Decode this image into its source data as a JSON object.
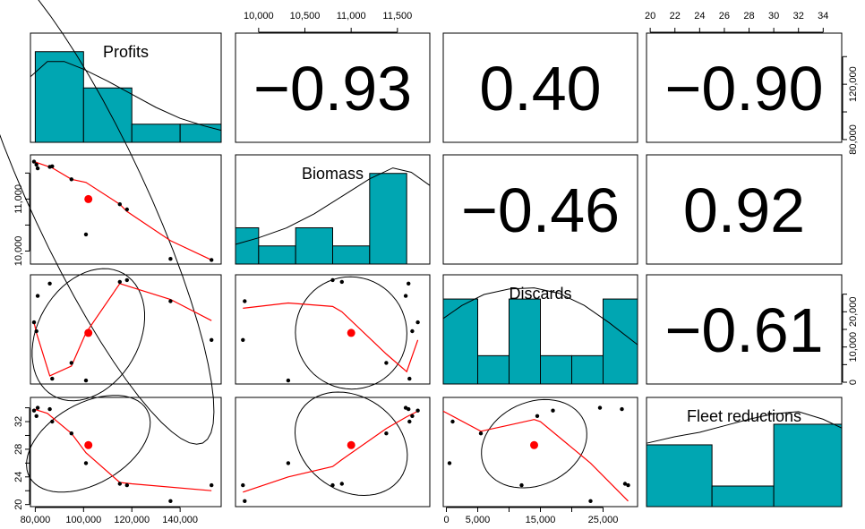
{
  "chart_data": {
    "type": "scatter-matrix",
    "variables": [
      "Profits",
      "Biomass",
      "Discards",
      "Fleet reductions"
    ],
    "correlations": [
      {
        "row": 0,
        "col": 1,
        "label": "−0.93"
      },
      {
        "row": 0,
        "col": 2,
        "label": "0.40"
      },
      {
        "row": 0,
        "col": 3,
        "label": "−0.90"
      },
      {
        "row": 1,
        "col": 2,
        "label": "−0.46"
      },
      {
        "row": 1,
        "col": 3,
        "label": "0.92"
      },
      {
        "row": 2,
        "col": 3,
        "label": "−0.61"
      }
    ],
    "axes": [
      {
        "range": [
          78000,
          157000
        ],
        "ticks": [
          {
            "v": 80000,
            "label": "80,000"
          },
          {
            "v": 100000,
            "label": "100,000"
          },
          {
            "v": 120000,
            "label": "120,000"
          },
          {
            "v": 140000,
            "label": "140,000"
          }
        ]
      },
      {
        "range": [
          9750,
          11850
        ],
        "ticks": [
          {
            "v": 10000,
            "label": "10,000"
          },
          {
            "v": 10500,
            "label": "10,500"
          },
          {
            "v": 11000,
            "label": "11,000"
          },
          {
            "v": 11500,
            "label": "11,500"
          }
        ]
      },
      {
        "range": [
          -500,
          30500
        ],
        "ticks": [
          {
            "v": 0,
            "label": "0"
          },
          {
            "v": 5000,
            "label": "5,000"
          },
          {
            "v": 10000,
            "label": "10,000"
          },
          {
            "v": 15000,
            "label": "15,000"
          },
          {
            "v": 20000,
            "label": "20,000"
          },
          {
            "v": 25000,
            "label": "25,000"
          }
        ]
      },
      {
        "range": [
          19.7,
          35.5
        ],
        "ticks": [
          {
            "v": 20,
            "label": "20"
          },
          {
            "v": 22,
            "label": "22"
          },
          {
            "v": 24,
            "label": "24"
          },
          {
            "v": 26,
            "label": "26"
          },
          {
            "v": 28,
            "label": "28"
          },
          {
            "v": 30,
            "label": "30"
          },
          {
            "v": 32,
            "label": "32"
          },
          {
            "v": 34,
            "label": "34"
          }
        ]
      }
    ],
    "bottom_axis_labels": [
      [
        "80,000",
        "100,000",
        "120,000",
        "140,000"
      ],
      null,
      [
        "0",
        "5,000",
        "15,000",
        "25,000"
      ],
      null
    ],
    "bottom_axis_ticks": [
      [
        80000,
        100000,
        120000,
        140000
      ],
      null,
      [
        0,
        5000,
        10000,
        15000,
        20000,
        25000
      ],
      null
    ],
    "top_axis_labels": [
      null,
      [
        "10,000",
        "10,500",
        "11,000",
        "11,500"
      ],
      null,
      [
        "20",
        "22",
        "24",
        "26",
        "28",
        "30",
        "32",
        "34"
      ]
    ],
    "left_axis_labels": [
      null,
      [
        "10,000",
        "11,000"
      ],
      null,
      [
        "20",
        "24",
        "28",
        "32"
      ]
    ],
    "left_axis_ticks": [
      null,
      [
        10000,
        10500,
        11000,
        11500
      ],
      null,
      [
        20,
        22,
        24,
        26,
        28,
        30,
        32,
        34
      ]
    ],
    "right_axis_labels": [
      [
        "80,000",
        "120,000"
      ],
      null,
      [
        "0",
        "10,000",
        "20,000"
      ],
      null
    ],
    "right_axis_ticks": [
      [
        80000,
        100000,
        120000,
        140000
      ],
      null,
      [
        0,
        5000,
        10000,
        15000,
        20000,
        25000
      ],
      null
    ],
    "points": [
      [
        79500,
        11720,
        17000,
        33.6
      ],
      [
        80500,
        11660,
        14500,
        32.8
      ],
      [
        81000,
        11590,
        24500,
        34.0
      ],
      [
        86000,
        11620,
        28000,
        33.8
      ],
      [
        87000,
        11630,
        1000,
        32.0
      ],
      [
        95000,
        11380,
        5500,
        30.3
      ],
      [
        101000,
        10320,
        500,
        26.0
      ],
      [
        115000,
        10900,
        28500,
        23.0
      ],
      [
        118000,
        10800,
        29000,
        22.8
      ],
      [
        136000,
        9850,
        23000,
        20.5
      ],
      [
        153000,
        9830,
        12000,
        22.8
      ]
    ],
    "means": [
      102000,
      11000,
      14000,
      28.6
    ],
    "histograms": [
      {
        "breaks": [
          80000,
          100000,
          120000,
          140000,
          160000
        ],
        "counts": [
          5,
          3,
          1,
          1
        ],
        "max": 5
      },
      {
        "breaks": [
          9700,
          10000,
          10400,
          10800,
          11200,
          11600,
          12000
        ],
        "counts": [
          2,
          1,
          2,
          1,
          5,
          0
        ],
        "max": 5
      },
      {
        "breaks": [
          -500,
          5000,
          10000,
          15000,
          20000,
          25000,
          30500
        ],
        "counts": [
          3,
          1,
          3,
          1,
          1,
          3
        ],
        "max": 3.2
      },
      {
        "breaks": [
          19.7,
          25,
          30,
          35.5
        ],
        "counts": [
          3,
          1,
          4
        ],
        "max": 4.4
      }
    ],
    "density_curves": [
      [
        [
          78000,
          0.6
        ],
        [
          85000,
          0.74
        ],
        [
          92000,
          0.74
        ],
        [
          100000,
          0.67
        ],
        [
          110000,
          0.56
        ],
        [
          120000,
          0.44
        ],
        [
          130000,
          0.32
        ],
        [
          140000,
          0.22
        ],
        [
          150000,
          0.15
        ],
        [
          157000,
          0.11
        ]
      ],
      [
        [
          9750,
          0.18
        ],
        [
          10000,
          0.24
        ],
        [
          10300,
          0.33
        ],
        [
          10600,
          0.46
        ],
        [
          10900,
          0.62
        ],
        [
          11200,
          0.78
        ],
        [
          11450,
          0.88
        ],
        [
          11650,
          0.84
        ],
        [
          11850,
          0.72
        ]
      ],
      [
        [
          -500,
          0.6
        ],
        [
          2500,
          0.72
        ],
        [
          6000,
          0.82
        ],
        [
          10000,
          0.87
        ],
        [
          14000,
          0.88
        ],
        [
          18000,
          0.83
        ],
        [
          22000,
          0.72
        ],
        [
          26000,
          0.56
        ],
        [
          30500,
          0.36
        ]
      ],
      [
        [
          19.7,
          0.58
        ],
        [
          22,
          0.64
        ],
        [
          24,
          0.68
        ],
        [
          26,
          0.74
        ],
        [
          28,
          0.8
        ],
        [
          30,
          0.85
        ],
        [
          32,
          0.87
        ],
        [
          34,
          0.8
        ],
        [
          35.5,
          0.72
        ]
      ]
    ],
    "loess": {
      "0-1": [
        [
          79500,
          11720
        ],
        [
          87000,
          11600
        ],
        [
          95000,
          11380
        ],
        [
          101000,
          11320
        ],
        [
          115000,
          10900
        ],
        [
          118000,
          10760
        ],
        [
          136000,
          10200
        ],
        [
          153000,
          9830
        ]
      ],
      "0-2": [
        [
          79500,
          17000
        ],
        [
          80500,
          14000
        ],
        [
          86000,
          1800
        ],
        [
          95000,
          4600
        ],
        [
          101000,
          14000
        ],
        [
          115000,
          28000
        ],
        [
          136000,
          23500
        ],
        [
          153000,
          17500
        ]
      ],
      "1-2": [
        [
          9830,
          21000
        ],
        [
          10320,
          22500
        ],
        [
          10800,
          21500
        ],
        [
          10900,
          20000
        ],
        [
          11380,
          8000
        ],
        [
          11600,
          3000
        ],
        [
          11720,
          12000
        ]
      ],
      "0-3": [
        [
          79500,
          33.8
        ],
        [
          85000,
          33.2
        ],
        [
          95000,
          30.3
        ],
        [
          101000,
          27.5
        ],
        [
          115000,
          23.2
        ],
        [
          120000,
          23.0
        ],
        [
          153000,
          22.0
        ]
      ],
      "1-3": [
        [
          9830,
          21.8
        ],
        [
          10320,
          24.0
        ],
        [
          10800,
          25.5
        ],
        [
          10900,
          26.5
        ],
        [
          11380,
          31.0
        ],
        [
          11600,
          32.7
        ],
        [
          11720,
          33.5
        ]
      ],
      "2-3": [
        [
          -500,
          33.5
        ],
        [
          5500,
          30.6
        ],
        [
          10000,
          31.5
        ],
        [
          14000,
          32.3
        ],
        [
          15000,
          32.0
        ],
        [
          23000,
          26.0
        ],
        [
          29000,
          20.5
        ]
      ]
    },
    "ellipses": {
      "0-1": {
        "cx": 102000,
        "cy": 11020,
        "a": 47500,
        "b": 5200,
        "angle": -25
      },
      "0-2": {
        "cx": 102000,
        "cy": 13500,
        "a": 42000,
        "b": 20000,
        "angle": 30
      },
      "1-2": {
        "cx": 11000,
        "cy": 14000,
        "a": 1200,
        "b": 16000,
        "angle": -30
      },
      "0-3": {
        "cx": 102000,
        "cy": 28.8,
        "a": 56000,
        "b": 5.8,
        "angle": -30
      },
      "1-3": {
        "cx": 11000,
        "cy": 28.8,
        "a": 1300,
        "b": 6.8,
        "angle": 35
      },
      "2-3": {
        "cx": 14000,
        "cy": 28.8,
        "a": 17500,
        "b": 6.0,
        "angle": -25
      }
    }
  }
}
